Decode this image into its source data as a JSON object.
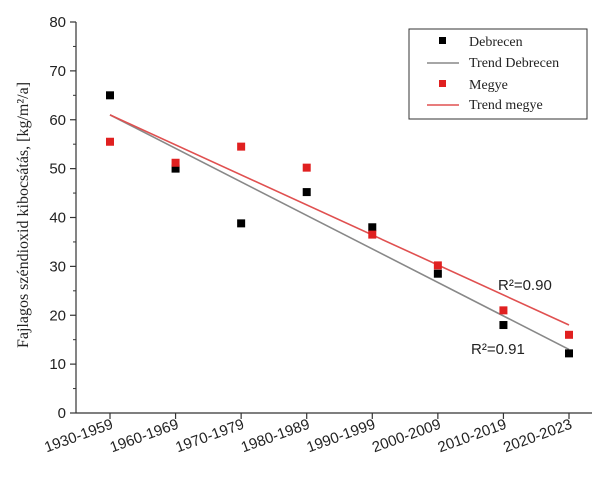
{
  "chart_data": {
    "type": "scatter",
    "categories": [
      "1930-1959",
      "1960-1969",
      "1970-1979",
      "1980-1989",
      "1990-1999",
      "2000-2009",
      "2010-2019",
      "2020-2023"
    ],
    "ylabel": "Fajlagos széndioxid kibocsátás, [kg/m²/a]",
    "ylim": [
      0,
      80
    ],
    "yticks": [
      0,
      10,
      20,
      30,
      40,
      50,
      60,
      70,
      80
    ],
    "grid": false,
    "legend_position": "top-right",
    "series": [
      {
        "name": "Debrecen",
        "color": "#000000",
        "values": [
          65.0,
          50.0,
          38.8,
          45.2,
          38.0,
          28.5,
          18.0,
          12.2
        ]
      },
      {
        "name": "Megye",
        "color": "#e02020",
        "values": [
          55.5,
          51.2,
          54.5,
          50.2,
          36.5,
          30.2,
          21.0,
          16.0
        ]
      }
    ],
    "trends": [
      {
        "name": "Trend Debrecen",
        "color": "#888888",
        "start": 61.0,
        "end": 13.0,
        "r2_label": "R²=0.91"
      },
      {
        "name": "Trend megye",
        "color": "#e05050",
        "start": 61.0,
        "end": 18.0,
        "r2_label": "R²=0.90"
      }
    ]
  }
}
